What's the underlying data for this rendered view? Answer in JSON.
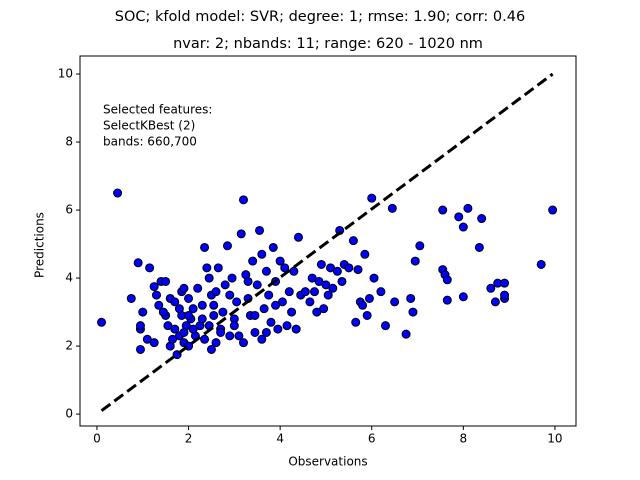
{
  "chart_data": {
    "type": "scatter",
    "title": "SOC; kfold model: SVR; degree: 1; rmse: 1.90; corr: 0.46",
    "subtitle": "nvar: 2; nbands: 11; range: 620 - 1020 nm",
    "x_label": "Observations",
    "y_label": "Predictions",
    "annotation": [
      "Selected features:",
      "SelectKBest (2)",
      "bands: 660,700"
    ],
    "xlim": [
      -0.37,
      10.46
    ],
    "ylim": [
      -0.35,
      10.53
    ],
    "xticks": [
      0,
      2,
      4,
      6,
      8,
      10
    ],
    "yticks": [
      0,
      2,
      4,
      6,
      8,
      10
    ],
    "grid": false,
    "reference_line": {
      "x": [
        0.1,
        9.95
      ],
      "y": [
        0.1,
        10
      ],
      "color": "#000000",
      "style": "dashed"
    },
    "series": [
      {
        "color": "#0000ff",
        "edgecolor": "#000000",
        "x": [
          0.1,
          0.45,
          0.75,
          0.9,
          0.95,
          0.95,
          0.95,
          1.0,
          1.1,
          1.15,
          1.25,
          1.25,
          1.3,
          1.35,
          1.4,
          1.5,
          1.5,
          1.55,
          1.6,
          1.6,
          1.7,
          1.7,
          1.75,
          1.8,
          1.85,
          1.85,
          1.9,
          1.9,
          1.95,
          2.0,
          2.0,
          2.05,
          2.1,
          2.15,
          2.2,
          2.25,
          2.3,
          2.35,
          2.35,
          2.4,
          2.45,
          2.45,
          2.5,
          2.5,
          2.55,
          2.6,
          2.6,
          2.65,
          2.7,
          2.75,
          2.8,
          2.85,
          2.9,
          2.9,
          2.95,
          3.0,
          3.05,
          3.1,
          3.15,
          3.2,
          3.2,
          3.25,
          3.3,
          3.35,
          3.4,
          3.45,
          3.5,
          3.55,
          3.6,
          3.6,
          3.65,
          3.7,
          3.75,
          3.8,
          3.85,
          3.9,
          3.95,
          4.0,
          4.05,
          4.1,
          4.2,
          4.25,
          4.3,
          4.35,
          4.4,
          4.45,
          4.55,
          4.65,
          4.7,
          4.75,
          4.8,
          4.85,
          4.9,
          4.95,
          5.0,
          5.05,
          5.1,
          5.15,
          5.25,
          5.3,
          5.35,
          5.4,
          5.5,
          5.6,
          5.65,
          5.7,
          5.75,
          5.8,
          5.85,
          5.9,
          5.95,
          6.0,
          6.05,
          6.2,
          6.3,
          6.45,
          6.5,
          6.75,
          6.85,
          6.9,
          6.95,
          7.05,
          7.55,
          7.55,
          7.6,
          7.65,
          7.65,
          7.9,
          8.0,
          8.0,
          8.1,
          8.35,
          8.4,
          8.6,
          8.7,
          8.75,
          8.9,
          8.9,
          8.9,
          9.7,
          9.95,
          1.45,
          1.65,
          1.8,
          2.1,
          2.3,
          2.55,
          2.7,
          3.0,
          3.3,
          3.45,
          3.7,
          3.9,
          4.15,
          2.0,
          1.9
        ],
        "values": [
          2.7,
          6.5,
          3.4,
          4.45,
          2.5,
          2.6,
          1.9,
          3.0,
          2.2,
          4.3,
          2.1,
          3.75,
          3.5,
          3.2,
          3.9,
          3.9,
          2.9,
          2.6,
          3.4,
          2.0,
          2.5,
          3.3,
          1.75,
          2.3,
          3.6,
          2.9,
          3.7,
          2.1,
          2.6,
          3.4,
          2.0,
          2.8,
          3.1,
          2.3,
          3.7,
          2.6,
          3.2,
          4.9,
          2.2,
          4.3,
          4.0,
          2.6,
          3.5,
          1.9,
          2.9,
          3.6,
          2.1,
          4.3,
          2.5,
          3.0,
          3.8,
          4.95,
          2.3,
          3.5,
          4.0,
          2.8,
          3.3,
          2.3,
          5.3,
          6.3,
          2.1,
          4.1,
          3.4,
          2.9,
          4.5,
          2.4,
          3.8,
          5.4,
          4.7,
          2.2,
          3.1,
          4.2,
          3.5,
          2.7,
          4.9,
          3.9,
          2.5,
          4.5,
          3.3,
          4.3,
          3.6,
          3.0,
          4.2,
          2.5,
          5.2,
          3.5,
          3.6,
          3.3,
          4.0,
          3.6,
          3.0,
          3.9,
          4.4,
          3.1,
          3.8,
          3.5,
          4.3,
          3.7,
          4.2,
          5.4,
          3.9,
          4.4,
          4.3,
          5.1,
          2.7,
          4.25,
          3.3,
          3.2,
          4.7,
          2.9,
          3.4,
          6.35,
          4.0,
          3.6,
          2.6,
          6.05,
          3.3,
          2.35,
          3.4,
          3.0,
          4.5,
          4.95,
          6.0,
          4.25,
          4.1,
          3.35,
          3.95,
          5.8,
          3.45,
          5.5,
          6.05,
          4.9,
          5.75,
          3.7,
          3.3,
          3.85,
          3.85,
          3.4,
          3.5,
          4.4,
          6.0,
          3.0,
          2.2,
          3.1,
          2.5,
          2.8,
          3.2,
          2.4,
          2.6,
          3.9,
          2.9,
          2.4,
          3.2,
          2.6,
          2.9,
          2.4
        ]
      }
    ]
  }
}
